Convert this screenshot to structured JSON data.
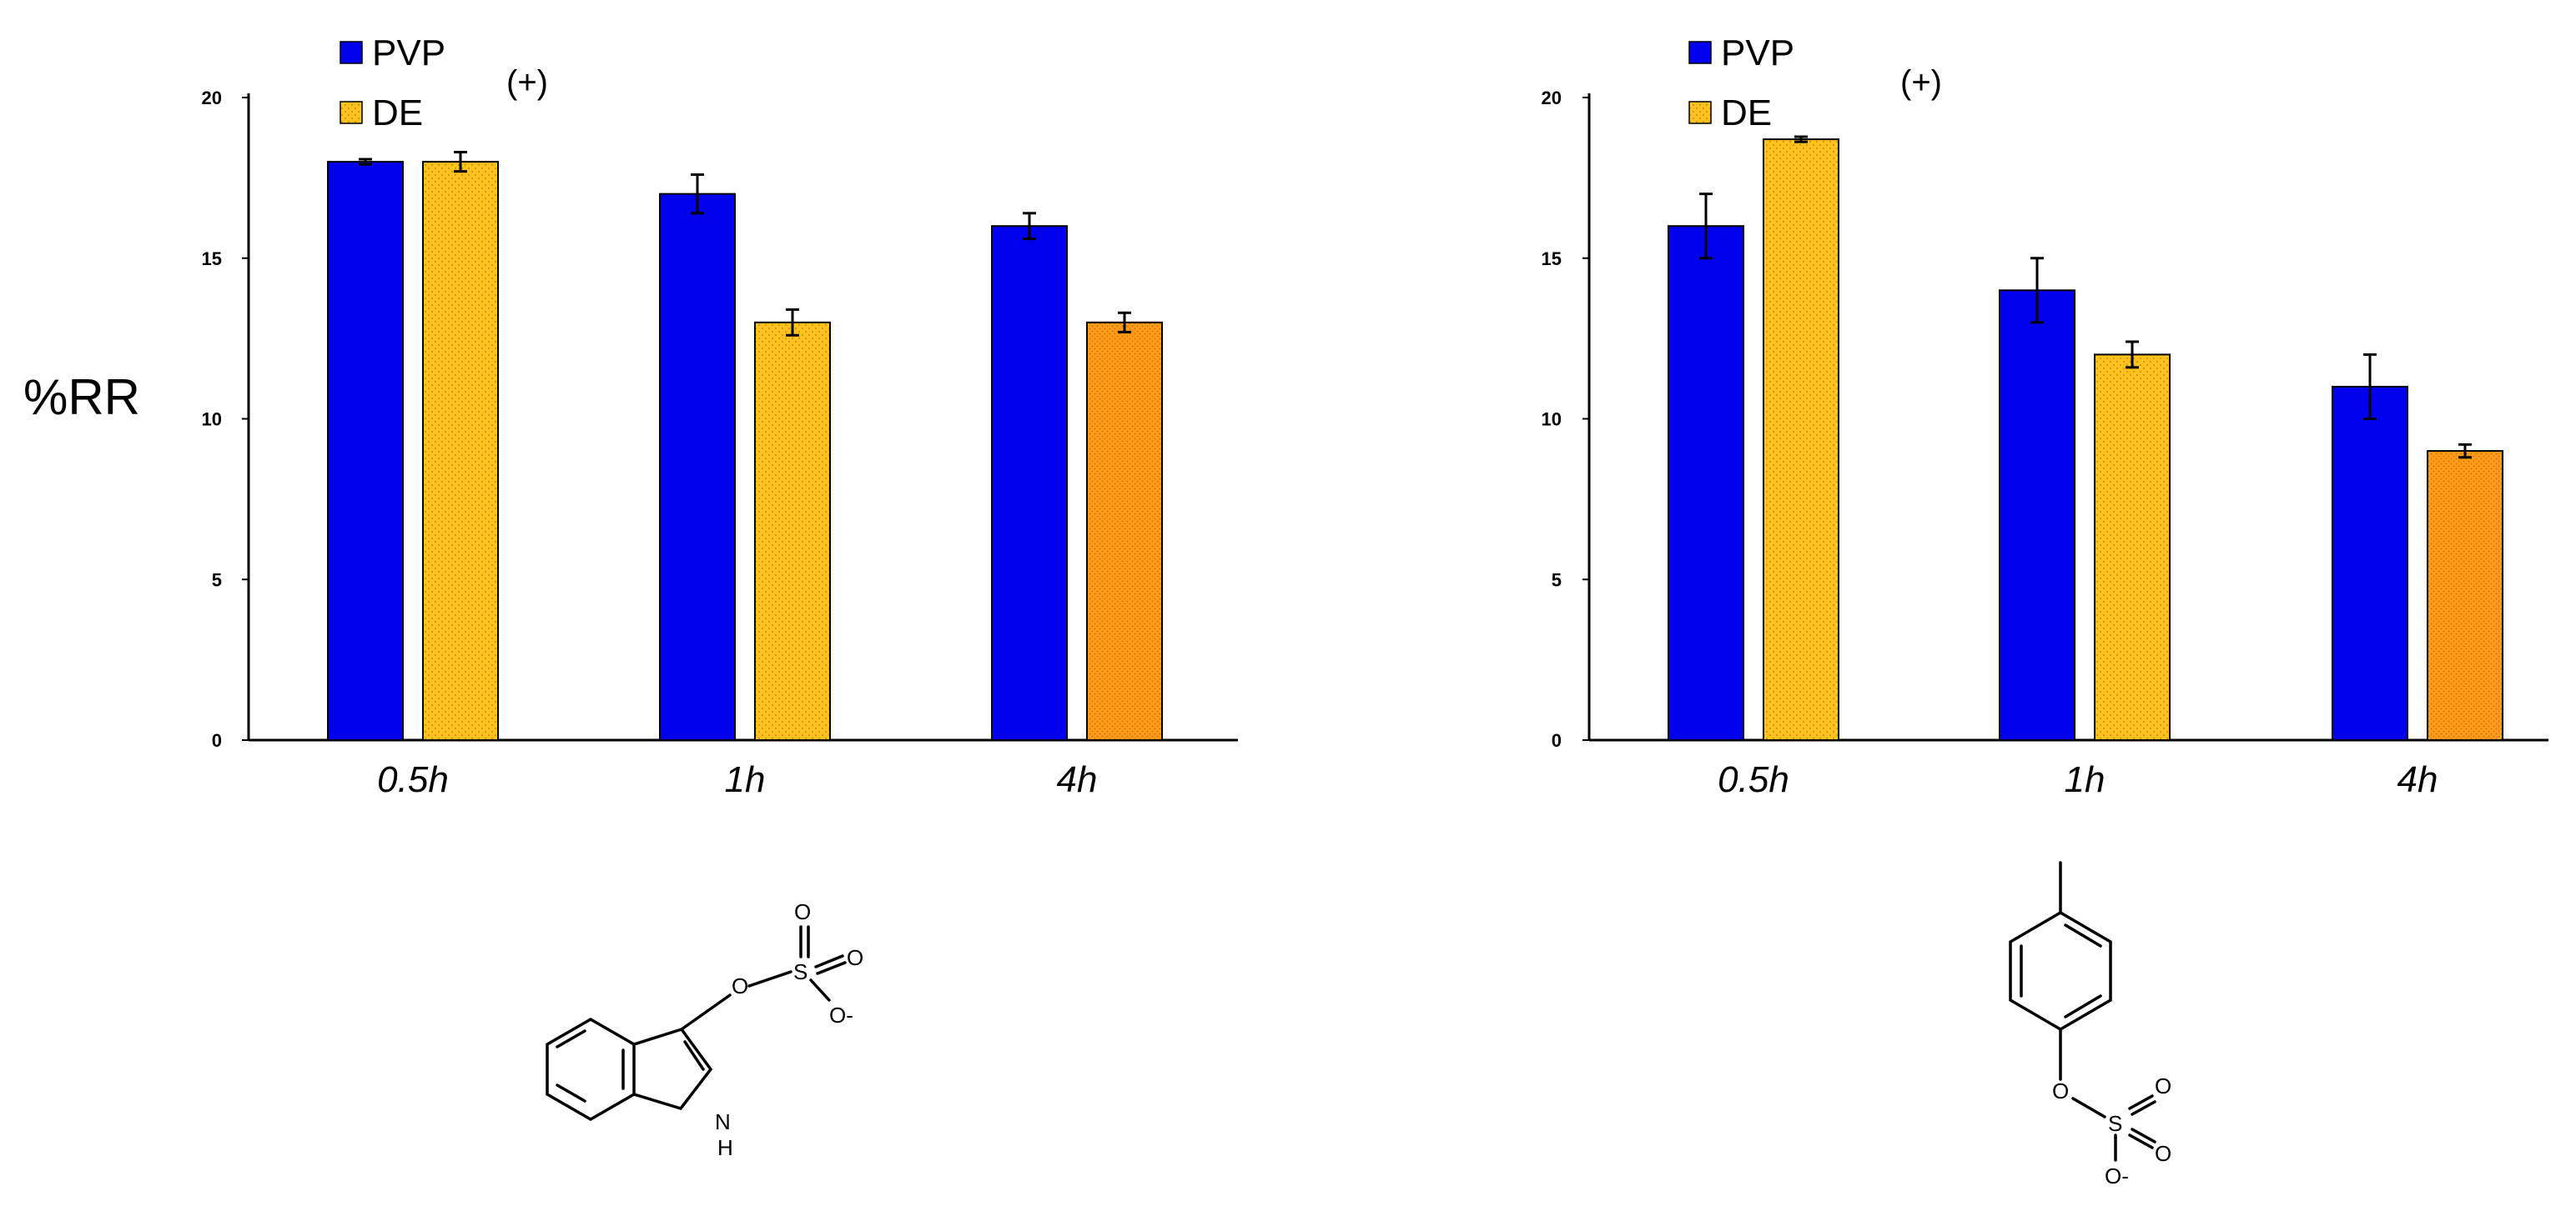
{
  "colors": {
    "pvp": "#0000ee",
    "de": "#ffc21f",
    "de_dark": "#ff9c1a",
    "axis": "#000000"
  },
  "y_axis_label": "%RR",
  "chart_data": [
    {
      "type": "bar",
      "annotation": "(+)",
      "categories": [
        "0.5h",
        "1h",
        "4h"
      ],
      "series": [
        {
          "name": "PVP",
          "values": [
            18,
            17,
            16
          ],
          "errors": [
            0.08,
            0.6,
            0.4
          ]
        },
        {
          "name": "DE",
          "values": [
            18,
            13,
            13
          ],
          "errors": [
            0.3,
            0.4,
            0.3
          ]
        }
      ],
      "ylim": [
        0,
        20
      ],
      "yticks": [
        0,
        5,
        10,
        15,
        20
      ],
      "legend": "top-left",
      "grid": false
    },
    {
      "type": "bar",
      "annotation": "(+)",
      "categories": [
        "0.5h",
        "1h",
        "4h"
      ],
      "series": [
        {
          "name": "PVP",
          "values": [
            16,
            14,
            11
          ],
          "errors": [
            1.0,
            1.0,
            1.0
          ]
        },
        {
          "name": "DE",
          "values": [
            18.7,
            12,
            9
          ],
          "errors": [
            0.08,
            0.4,
            0.2
          ]
        }
      ],
      "ylim": [
        0,
        20
      ],
      "yticks": [
        0,
        5,
        10,
        15,
        20
      ],
      "legend": "top-left",
      "grid": false
    }
  ],
  "structures": [
    {
      "name": "indoxyl sulfate",
      "atoms": [
        "O",
        "S",
        "O",
        "O",
        "O-",
        "N",
        "H"
      ]
    },
    {
      "name": "p-cresyl sulfate",
      "atoms": [
        "O",
        "S",
        "O",
        "O",
        "O-"
      ]
    }
  ]
}
